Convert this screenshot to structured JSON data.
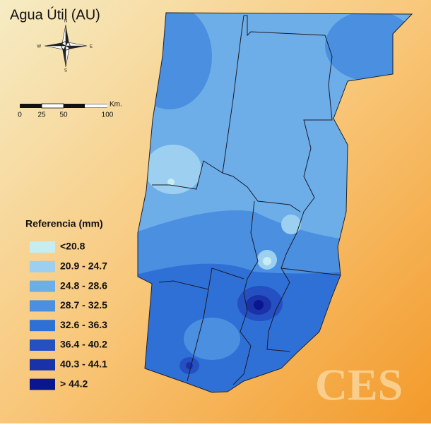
{
  "title": "Agua Útil (AU)",
  "compass": {
    "n": "N",
    "e": "E",
    "s": "S",
    "w": "W"
  },
  "scale": {
    "labels": [
      "0",
      "25",
      "50",
      "100"
    ],
    "unit": "Km."
  },
  "legend": {
    "title": "Referencia (mm)",
    "items": [
      {
        "label": "<20.8",
        "color": "#c6eef2"
      },
      {
        "label": "20.9 - 24.7",
        "color": "#9dd0f0"
      },
      {
        "label": "24.8 - 28.6",
        "color": "#6daee8"
      },
      {
        "label": "28.7 - 32.5",
        "color": "#4a8fe0"
      },
      {
        "label": "32.6 - 36.3",
        "color": "#2e70d6"
      },
      {
        "label": "36.4 - 40.2",
        "color": "#2550c2"
      },
      {
        "label": "40.3 - 44.1",
        "color": "#1a32a8"
      },
      {
        "label": "> 44.2",
        "color": "#0a168e"
      }
    ]
  },
  "logo": "CES"
}
